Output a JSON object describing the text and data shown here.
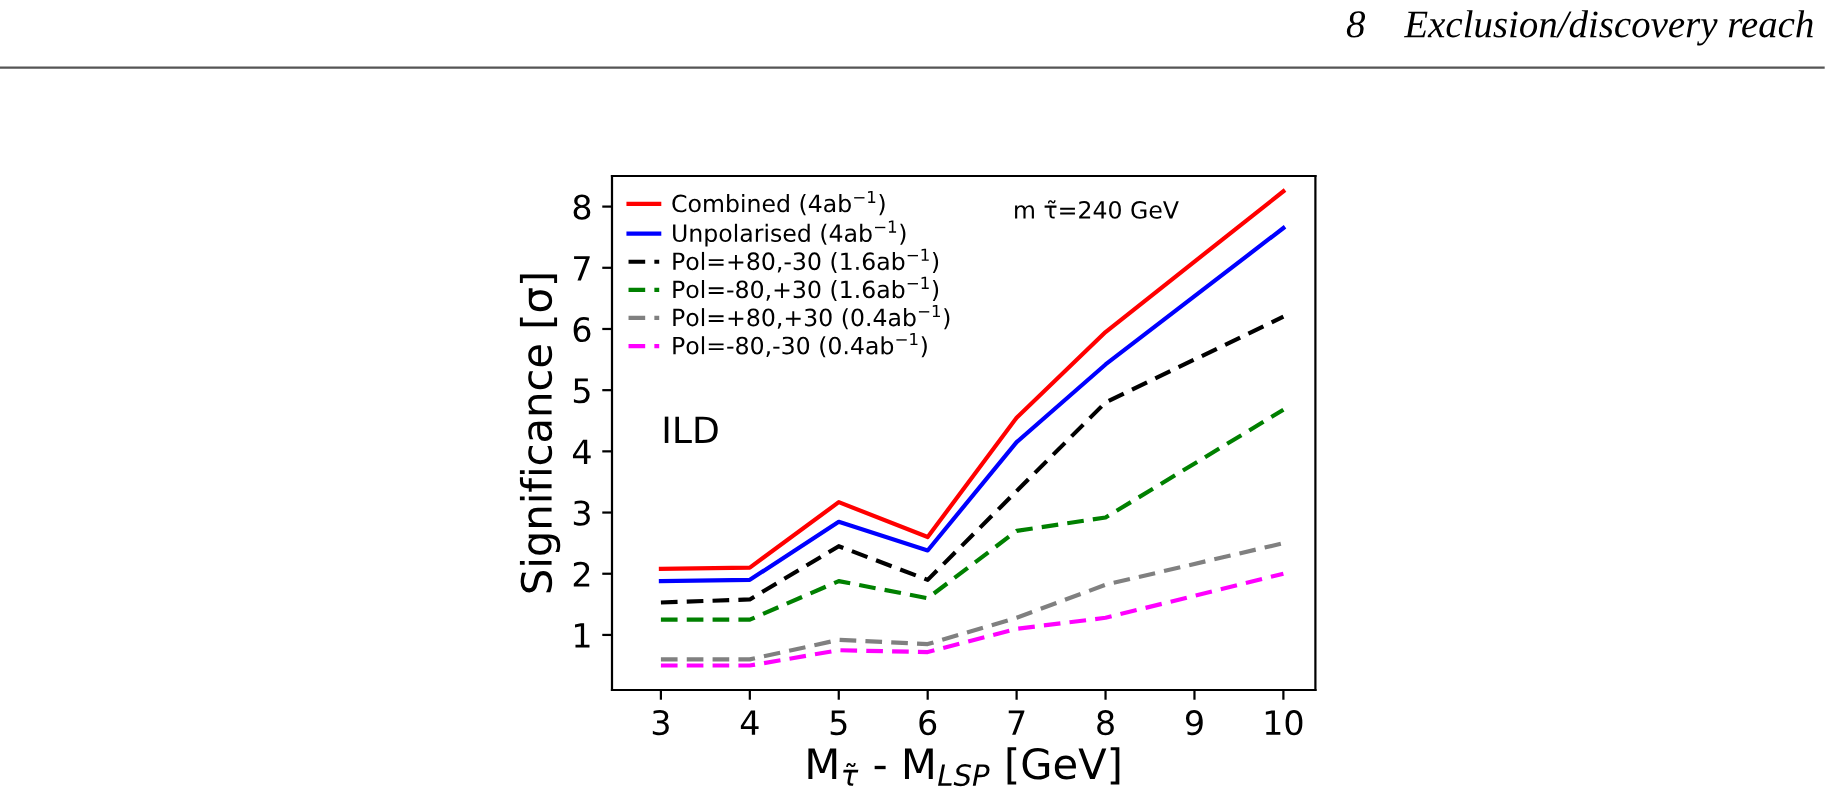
{
  "chart_data": {
    "type": "line",
    "xlabel": "M$_{τ̃}$ - M$_{LSP}$ [GeV]",
    "ylabel": "Significance [σ]",
    "x": [
      3,
      4,
      5,
      6,
      7,
      8,
      10
    ],
    "series": [
      {
        "name": "Combined (4ab$^{−1}$)",
        "color": "#ff0000",
        "line_style": "solid",
        "values": [
          2.08,
          2.1,
          3.17,
          2.6,
          4.55,
          5.95,
          8.25
        ]
      },
      {
        "name": "Unpolarised (4ab$^{−1}$)",
        "color": "#0000ff",
        "line_style": "solid",
        "values": [
          1.88,
          1.9,
          2.85,
          2.38,
          4.15,
          5.42,
          7.65
        ]
      },
      {
        "name": "Pol=+80,-30 (1.6ab$^{−1}$)",
        "color": "#000000",
        "line_style": "dashed",
        "values": [
          1.53,
          1.58,
          2.45,
          1.9,
          3.35,
          4.8,
          6.2
        ]
      },
      {
        "name": "Pol=-80,+30 (1.6ab$^{−1}$)",
        "color": "#008000",
        "line_style": "dashed",
        "values": [
          1.25,
          1.25,
          1.88,
          1.6,
          2.7,
          2.92,
          4.68
        ]
      },
      {
        "name": "Pol=+80,+30 (0.4ab$^{−1}$)",
        "color": "#808080",
        "line_style": "dashed",
        "values": [
          0.6,
          0.6,
          0.92,
          0.85,
          1.28,
          1.82,
          2.5
        ]
      },
      {
        "name": "Pol=-80,-30 (0.4ab$^{−1}$)",
        "color": "#ff00ff",
        "line_style": "dashed",
        "values": [
          0.5,
          0.5,
          0.75,
          0.72,
          1.1,
          1.28,
          2.0
        ]
      }
    ],
    "xlim": [
      2.45,
      10.36
    ],
    "ylim": [
      0.1,
      8.5
    ],
    "xticks": [
      3,
      4,
      5,
      6,
      7,
      8,
      9,
      10
    ],
    "yticks": [
      1,
      2,
      3,
      4,
      5,
      6,
      7,
      8
    ],
    "annotations": [
      "8    Exclusion/discovery reach",
      "m τ̃=240 GeV",
      "ILD"
    ],
    "grid": false,
    "legend": "top left",
    "marker": "none"
  }
}
